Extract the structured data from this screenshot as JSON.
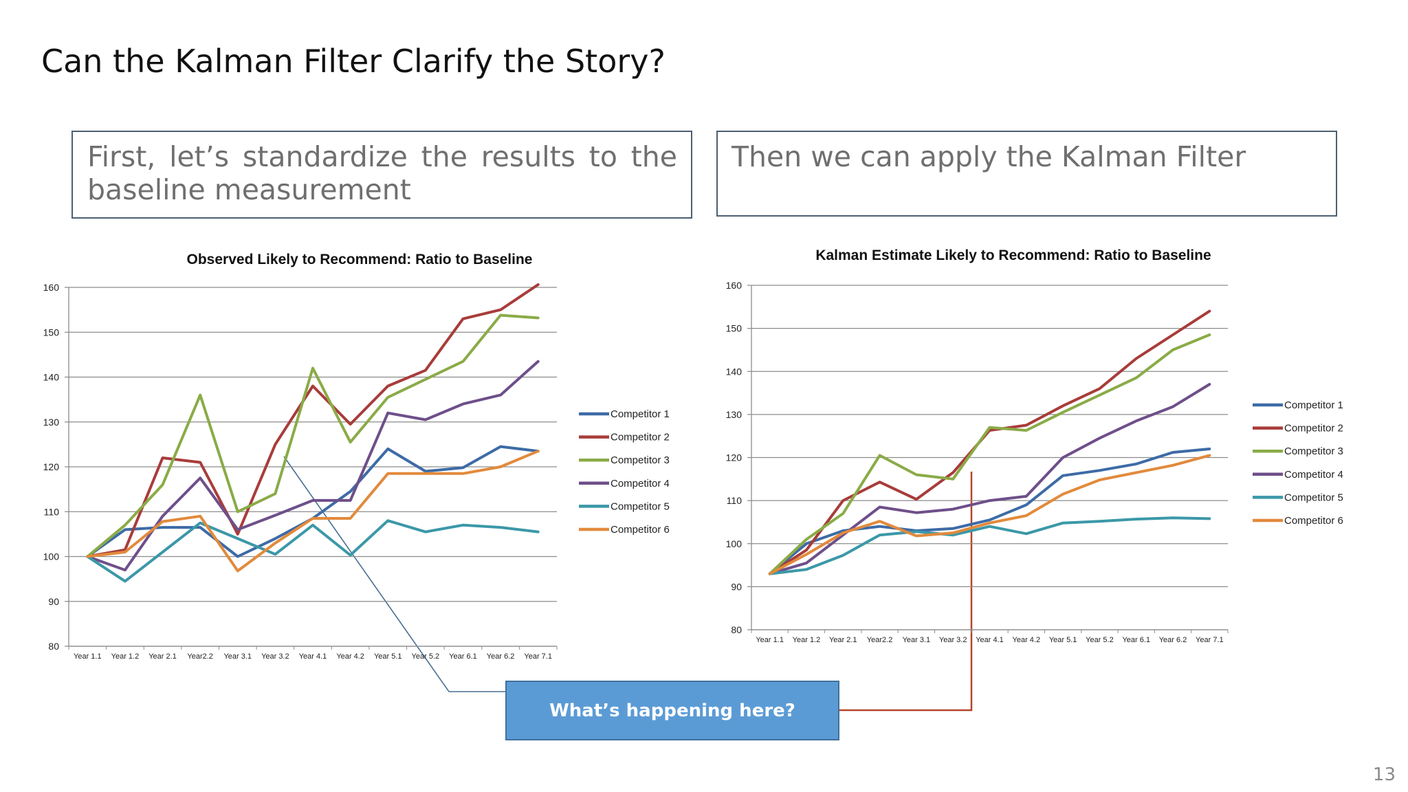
{
  "slide": {
    "title": "Can the Kalman Filter Clarify the Story?",
    "left_box_text": "First, let’s standardize the results to the baseline measurement",
    "right_box_text": "Then we can apply the Kalman Filter",
    "callout_text": "What’s happening here?",
    "page_number": "13"
  },
  "colors": {
    "Competitor 1": "#3d6ba6",
    "Competitor 2": "#a83c3a",
    "Competitor 3": "#8aab47",
    "Competitor 4": "#6e4f8a",
    "Competitor 5": "#3b98a8",
    "Competitor 6": "#e28a3c",
    "callout_fill": "#5b9bd5",
    "connector_left": "#4a6e91",
    "connector_right": "#b5442a"
  },
  "chart_data": [
    {
      "type": "line",
      "title": "Observed Likely to Recommend: Ratio to Baseline",
      "categories": [
        "Year 1.1",
        "Year 1.2",
        "Year 2.1",
        "Year2.2",
        "Year 3.1",
        "Year 3.2",
        "Year 4.1",
        "Year 4.2",
        "Year 5.1",
        "Year 5.2",
        "Year 6.1",
        "Year 6.2",
        "Year 7.1"
      ],
      "ylim": [
        80,
        160
      ],
      "yticks": [
        80,
        90,
        100,
        110,
        120,
        130,
        140,
        150,
        160
      ],
      "grid": true,
      "legend": "right",
      "series": [
        {
          "name": "Competitor 1",
          "values": [
            100,
            106,
            106.5,
            106.5,
            100,
            104,
            108.5,
            114.5,
            124,
            119,
            119.8,
            124.5,
            123.5
          ]
        },
        {
          "name": "Competitor 2",
          "values": [
            100,
            101.5,
            122,
            121,
            105,
            125,
            138,
            129.5,
            138,
            141.5,
            153,
            155,
            161
          ]
        },
        {
          "name": "Competitor 3",
          "values": [
            100,
            107,
            116,
            136,
            110,
            114,
            142,
            125.5,
            135.5,
            139.5,
            143.5,
            153.8,
            153.2
          ]
        },
        {
          "name": "Competitor 4",
          "values": [
            100,
            97,
            109,
            117.5,
            106,
            109.2,
            112.5,
            112.5,
            132,
            130.5,
            134,
            136,
            143.5
          ]
        },
        {
          "name": "Competitor 5",
          "values": [
            100,
            94.5,
            101,
            107.5,
            104,
            100.5,
            107,
            100.3,
            108,
            105.5,
            107,
            106.5,
            105.5
          ]
        },
        {
          "name": "Competitor 6",
          "values": [
            100,
            101,
            107.8,
            109,
            96.8,
            103,
            108.5,
            108.5,
            118.5,
            118.5,
            118.5,
            120,
            123.5
          ]
        }
      ]
    },
    {
      "type": "line",
      "title": "Kalman Estimate Likely to Recommend: Ratio to Baseline",
      "categories": [
        "Year 1.1",
        "Year 1.2",
        "Year 2.1",
        "Year2.2",
        "Year 3.1",
        "Year 3.2",
        "Year 4.1",
        "Year 4.2",
        "Year 5.1",
        "Year 5.2",
        "Year 6.1",
        "Year 6.2",
        "Year 7.1"
      ],
      "ylim": [
        80,
        160
      ],
      "yticks": [
        80,
        90,
        100,
        110,
        120,
        130,
        140,
        150,
        160
      ],
      "grid": true,
      "legend": "right",
      "series": [
        {
          "name": "Competitor 1",
          "values": [
            93,
            100,
            103,
            104,
            103,
            103.5,
            105.5,
            109,
            115.8,
            117,
            118.5,
            121.2,
            122
          ]
        },
        {
          "name": "Competitor 2",
          "values": [
            93,
            98.5,
            110,
            114.3,
            110.3,
            116.5,
            126.3,
            127.5,
            132,
            136,
            143,
            148.5,
            154
          ]
        },
        {
          "name": "Competitor 3",
          "values": [
            93,
            101,
            107,
            120.5,
            116,
            115,
            127,
            126.3,
            130.5,
            134.5,
            138.5,
            145,
            148.5
          ]
        },
        {
          "name": "Competitor 4",
          "values": [
            93,
            95.5,
            102,
            108.5,
            107.2,
            108,
            110,
            111,
            120,
            124.5,
            128.5,
            131.8,
            137
          ]
        },
        {
          "name": "Competitor 5",
          "values": [
            93,
            94,
            97.3,
            102,
            102.8,
            102,
            104,
            102.3,
            104.8,
            105.2,
            105.7,
            106,
            105.8
          ]
        },
        {
          "name": "Competitor 6",
          "values": [
            93,
            97.5,
            102.5,
            105.2,
            101.8,
            102.5,
            104.8,
            106.5,
            111.5,
            114.8,
            116.5,
            118.2,
            120.5
          ]
        }
      ]
    }
  ]
}
